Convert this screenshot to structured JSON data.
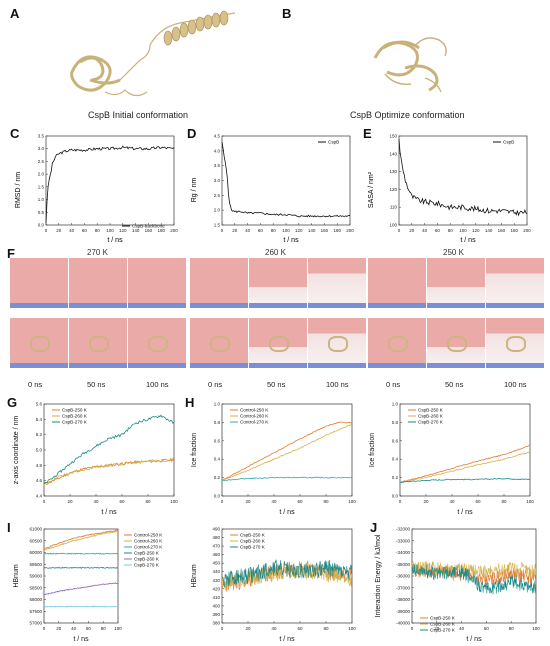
{
  "panels": {
    "A": {
      "letter": "A",
      "caption": "CspB Initial conformation"
    },
    "B": {
      "letter": "B",
      "caption": "CspB Optimize conformation"
    },
    "C": {
      "letter": "C",
      "ylabel": "RMSD / nm",
      "xlabel": "t / ns",
      "legend": "CspB-backbone"
    },
    "D": {
      "letter": "D",
      "ylabel": "Rg / nm",
      "xlabel": "t / ns",
      "legend": "CspB"
    },
    "E": {
      "letter": "E",
      "ylabel": "SASA / nm²",
      "xlabel": "t / ns",
      "legend": "CspB"
    },
    "F": {
      "letter": "F",
      "temps": [
        "270 K",
        "260 K",
        "250 K"
      ],
      "times": [
        "0 ns",
        "50 ns",
        "100 ns"
      ]
    },
    "G": {
      "letter": "G"
    },
    "H": {
      "letter": "H"
    },
    "I": {
      "letter": "I"
    },
    "J": {
      "letter": "J"
    }
  },
  "colors": {
    "black": "#111111",
    "ice_red": "#e8a0a0",
    "water_blue": "#7b8fd6",
    "orange": "#e07b39",
    "tan": "#d9a94a",
    "teal": "#1a8a8a",
    "c250": "#e07b39",
    "c260": "#d4b24a",
    "c270": "#3aa6b0",
    "i250": "#d9534f",
    "i260": "#8e6bb8",
    "i270": "#7ec8e3"
  },
  "chart_data": [
    {
      "id": "C",
      "type": "line",
      "xlabel": "t / ns",
      "ylabel": "RMSD / nm",
      "xlim": [
        0,
        200
      ],
      "ylim": [
        0.0,
        3.5
      ],
      "xticks": [
        0,
        20,
        40,
        60,
        80,
        100,
        120,
        140,
        160,
        180,
        200
      ],
      "yticks": [
        0.0,
        0.5,
        1.0,
        1.5,
        2.0,
        2.5,
        3.0,
        3.5
      ],
      "series": [
        {
          "name": "CspB-backbone",
          "x": [
            0,
            2,
            5,
            8,
            10,
            15,
            20,
            30,
            40,
            60,
            80,
            100,
            120,
            140,
            160,
            180,
            200
          ],
          "values": [
            0.1,
            1.2,
            1.8,
            2.1,
            2.4,
            2.7,
            2.8,
            2.9,
            2.95,
            2.95,
            3.0,
            3.0,
            3.05,
            3.0,
            3.0,
            3.05,
            3.0
          ]
        }
      ]
    },
    {
      "id": "D",
      "type": "line",
      "xlabel": "t / ns",
      "ylabel": "Rg / nm",
      "xlim": [
        0,
        200
      ],
      "ylim": [
        1.5,
        4.5
      ],
      "xticks": [
        0,
        20,
        40,
        60,
        80,
        100,
        120,
        140,
        160,
        180,
        200
      ],
      "yticks": [
        1.5,
        2.0,
        2.5,
        3.0,
        3.5,
        4.0,
        4.5
      ],
      "series": [
        {
          "name": "CspB",
          "x": [
            0,
            2,
            5,
            8,
            10,
            12,
            15,
            20,
            30,
            40,
            60,
            80,
            100,
            120,
            140,
            160,
            180,
            200
          ],
          "values": [
            4.3,
            4.0,
            3.6,
            3.2,
            2.6,
            2.2,
            2.0,
            1.95,
            1.95,
            1.9,
            1.9,
            1.85,
            1.85,
            1.8,
            1.8,
            1.8,
            1.8,
            1.8
          ]
        }
      ]
    },
    {
      "id": "E",
      "type": "line",
      "xlabel": "t / ns",
      "ylabel": "SASA / nm²",
      "xlim": [
        0,
        200
      ],
      "ylim": [
        100,
        150
      ],
      "xticks": [
        0,
        20,
        40,
        60,
        80,
        100,
        120,
        140,
        160,
        180,
        200
      ],
      "yticks": [
        100,
        110,
        120,
        130,
        140,
        150
      ],
      "series": [
        {
          "name": "CspB",
          "x": [
            0,
            2,
            5,
            10,
            15,
            20,
            30,
            40,
            60,
            80,
            100,
            120,
            140,
            160,
            180,
            200
          ],
          "values": [
            148,
            140,
            133,
            125,
            120,
            116,
            114,
            113,
            112,
            110,
            110,
            109,
            108,
            108,
            107,
            107
          ]
        }
      ]
    },
    {
      "id": "G",
      "type": "line",
      "xlabel": "t / ns",
      "ylabel": "z-axis coordinate / nm",
      "xlim": [
        0,
        100
      ],
      "ylim": [
        4.4,
        5.6
      ],
      "xticks": [
        0,
        20,
        40,
        60,
        80,
        100
      ],
      "yticks": [
        4.4,
        4.6,
        4.8,
        5.0,
        5.2,
        5.4,
        5.6
      ],
      "series": [
        {
          "name": "CspB-250 K",
          "x": [
            0,
            10,
            20,
            30,
            40,
            50,
            60,
            70,
            80,
            90,
            100
          ],
          "values": [
            4.55,
            4.62,
            4.7,
            4.75,
            4.78,
            4.8,
            4.82,
            4.84,
            4.85,
            4.86,
            4.87
          ]
        },
        {
          "name": "CspB-260 K",
          "x": [
            0,
            10,
            20,
            30,
            40,
            50,
            60,
            70,
            80,
            90,
            100
          ],
          "values": [
            4.55,
            4.64,
            4.7,
            4.74,
            4.78,
            4.8,
            4.82,
            4.84,
            4.86,
            4.86,
            4.88
          ]
        },
        {
          "name": "CspB-270 K",
          "x": [
            0,
            10,
            20,
            30,
            40,
            50,
            60,
            70,
            80,
            90,
            100
          ],
          "values": [
            4.55,
            4.68,
            4.82,
            4.95,
            5.05,
            5.15,
            5.2,
            5.35,
            5.4,
            5.45,
            5.35
          ]
        }
      ]
    },
    {
      "id": "H1",
      "type": "line",
      "xlabel": "t / ns",
      "ylabel": "Ice fraction",
      "xlim": [
        0,
        100
      ],
      "ylim": [
        0.0,
        1.0
      ],
      "xticks": [
        0,
        20,
        40,
        60,
        80,
        100
      ],
      "yticks": [
        0.0,
        0.2,
        0.4,
        0.6,
        0.8,
        1.0
      ],
      "series": [
        {
          "name": "Control-250 K",
          "x": [
            0,
            20,
            40,
            60,
            80,
            90,
            100
          ],
          "values": [
            0.17,
            0.32,
            0.47,
            0.62,
            0.76,
            0.8,
            0.8
          ]
        },
        {
          "name": "Control-260 K",
          "x": [
            0,
            20,
            40,
            60,
            80,
            100
          ],
          "values": [
            0.17,
            0.28,
            0.4,
            0.52,
            0.66,
            0.78
          ]
        },
        {
          "name": "Control-270 K",
          "x": [
            0,
            20,
            40,
            60,
            80,
            100
          ],
          "values": [
            0.17,
            0.19,
            0.2,
            0.2,
            0.2,
            0.2
          ]
        }
      ]
    },
    {
      "id": "H2",
      "type": "line",
      "xlabel": "t / ns",
      "ylabel": "Ice fraction",
      "xlim": [
        0,
        100
      ],
      "ylim": [
        0.0,
        1.0
      ],
      "xticks": [
        0,
        20,
        40,
        60,
        80,
        100
      ],
      "yticks": [
        0.0,
        0.2,
        0.4,
        0.6,
        0.8,
        1.0
      ],
      "series": [
        {
          "name": "CspB-250 K",
          "x": [
            0,
            20,
            40,
            60,
            80,
            100
          ],
          "values": [
            0.15,
            0.22,
            0.3,
            0.38,
            0.45,
            0.55
          ]
        },
        {
          "name": "CspB-260 K",
          "x": [
            0,
            20,
            40,
            60,
            80,
            100
          ],
          "values": [
            0.15,
            0.2,
            0.27,
            0.34,
            0.4,
            0.48
          ]
        },
        {
          "name": "CspB-270 K",
          "x": [
            0,
            20,
            40,
            60,
            80,
            100
          ],
          "values": [
            0.15,
            0.17,
            0.18,
            0.18,
            0.19,
            0.18
          ]
        }
      ]
    },
    {
      "id": "I1",
      "type": "line",
      "xlabel": "t / ns",
      "ylabel": "HBnum",
      "xlim": [
        0,
        100
      ],
      "ylim": [
        57000,
        61000
      ],
      "xticks": [
        0,
        20,
        40,
        60,
        80,
        100
      ],
      "yticks": [
        57000,
        57500,
        58000,
        58500,
        59000,
        59500,
        60000,
        60500,
        61000
      ],
      "series": [
        {
          "name": "Control-250 K",
          "x": [
            0,
            20,
            40,
            60,
            80,
            100
          ],
          "values": [
            60150,
            60400,
            60600,
            60750,
            60850,
            60950
          ]
        },
        {
          "name": "Control-260 K",
          "x": [
            0,
            20,
            40,
            60,
            80,
            100
          ],
          "values": [
            60100,
            60300,
            60500,
            60650,
            60800,
            60900
          ]
        },
        {
          "name": "Control-270 K",
          "x": [
            0,
            20,
            40,
            60,
            80,
            100
          ],
          "values": [
            59950,
            59950,
            59950,
            59950,
            59950,
            59950
          ]
        },
        {
          "name": "CspB-250 K",
          "x": [
            0,
            20,
            40,
            60,
            80,
            100
          ],
          "values": [
            59350,
            59350,
            59350,
            59350,
            59350,
            59350
          ]
        },
        {
          "name": "CspB-260 K",
          "x": [
            0,
            20,
            40,
            60,
            80,
            100
          ],
          "values": [
            58200,
            58350,
            58450,
            58550,
            58650,
            58700
          ]
        },
        {
          "name": "CspB-270 K",
          "x": [
            0,
            20,
            40,
            60,
            80,
            100
          ],
          "values": [
            57700,
            57700,
            57700,
            57700,
            57700,
            57700
          ]
        }
      ]
    },
    {
      "id": "I2",
      "type": "line",
      "xlabel": "t / ns",
      "ylabel": "HBnum",
      "xlim": [
        0,
        100
      ],
      "ylim": [
        380,
        490
      ],
      "xticks": [
        0,
        20,
        40,
        60,
        80,
        100
      ],
      "yticks": [
        380,
        390,
        400,
        410,
        420,
        430,
        440,
        450,
        460,
        470,
        480,
        490
      ],
      "series": [
        {
          "name": "CspB-250 K",
          "x": [
            0,
            20,
            40,
            60,
            80,
            100
          ],
          "values": [
            425,
            430,
            440,
            445,
            440,
            435
          ]
        },
        {
          "name": "CspB-260 K",
          "x": [
            0,
            20,
            40,
            60,
            80,
            100
          ],
          "values": [
            428,
            432,
            438,
            442,
            438,
            432
          ]
        },
        {
          "name": "CspB-270 K",
          "x": [
            0,
            20,
            40,
            60,
            80,
            100
          ],
          "values": [
            430,
            435,
            445,
            440,
            445,
            438
          ]
        }
      ]
    },
    {
      "id": "J",
      "type": "line",
      "xlabel": "t / ns",
      "ylabel": "Interaction Energy / kJ/mol",
      "xlim": [
        0,
        100
      ],
      "ylim": [
        -40000,
        -32000
      ],
      "xticks": [
        0,
        20,
        40,
        60,
        80,
        100
      ],
      "yticks": [
        -40000,
        -39000,
        -38000,
        -37000,
        -36000,
        -35000,
        -34000,
        -33000,
        -32000
      ],
      "series": [
        {
          "name": "CspB-250 K",
          "x": [
            0,
            20,
            40,
            60,
            80,
            100
          ],
          "values": [
            -35500,
            -35600,
            -35900,
            -36400,
            -35800,
            -36200
          ]
        },
        {
          "name": "CspB-260 K",
          "x": [
            0,
            20,
            40,
            60,
            80,
            100
          ],
          "values": [
            -35200,
            -35400,
            -35500,
            -35700,
            -35300,
            -35600
          ]
        },
        {
          "name": "CspB-270 K",
          "x": [
            0,
            20,
            40,
            60,
            80,
            100
          ],
          "values": [
            -35400,
            -35800,
            -35600,
            -37200,
            -36500,
            -37000
          ]
        }
      ]
    }
  ]
}
